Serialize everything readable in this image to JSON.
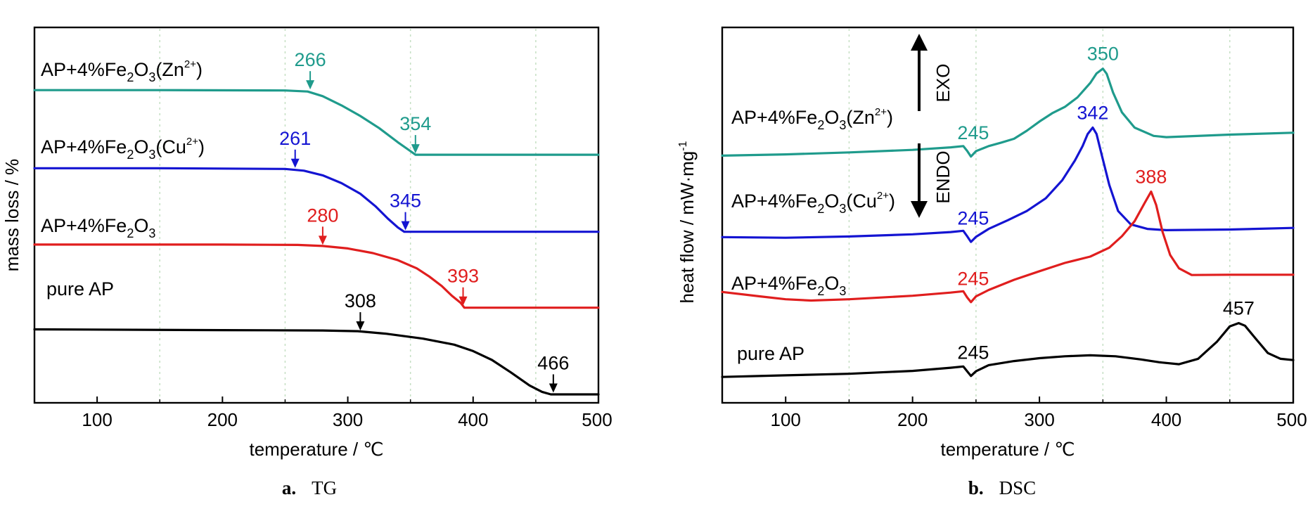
{
  "figure": {
    "panel_a_caption": {
      "letter": "a.",
      "text": "TG"
    },
    "panel_b_caption": {
      "letter": "b.",
      "text": "DSC"
    }
  },
  "colors": {
    "axis": "#000000",
    "grid": "#c5dfc3",
    "black": "#000000",
    "red": "#e01e1e",
    "blue": "#1414d2",
    "teal": "#1f9b8c"
  },
  "chart_data": [
    {
      "id": "tg",
      "type": "line",
      "title": "",
      "xlabel": "temperature / ℃",
      "ylabel": "mass loss / %",
      "xlim": [
        50,
        500
      ],
      "ylim": [
        0,
        100
      ],
      "xticks": [
        100,
        200,
        300,
        400,
        500
      ],
      "gridlines_x": [
        150,
        250,
        350,
        450
      ],
      "grid": "dashed vertical",
      "y_tick_labels": false,
      "series": [
        {
          "name_base": "AP+4%Fe",
          "name_sub1": "2",
          "name_mid": "O",
          "name_sub2": "3",
          "name_tail": "(Zn",
          "name_sup": "2+",
          "name_end": ")",
          "color": "teal",
          "x": [
            50,
            150,
            250,
            268,
            280,
            295,
            310,
            325,
            340,
            350,
            354,
            360,
            400,
            500
          ],
          "y": [
            86.5,
            86.5,
            86.4,
            86.1,
            84.8,
            82.2,
            79.2,
            75.8,
            71.8,
            69.3,
            68.3,
            68.3,
            68.3,
            68.3
          ],
          "annotations": [
            {
              "x": 270,
              "label": "266",
              "y_point": 86.3
            },
            {
              "x": 354,
              "label": "354",
              "y_point": 68.3
            }
          ]
        },
        {
          "name_base": "AP+4%Fe",
          "name_sub1": "2",
          "name_mid": "O",
          "name_sub2": "3",
          "name_tail": "(Cu",
          "name_sup": "2+",
          "name_end": ")",
          "color": "blue",
          "x": [
            50,
            150,
            250,
            265,
            280,
            295,
            310,
            322,
            332,
            340,
            345,
            350,
            400,
            500
          ],
          "y": [
            64.5,
            64.5,
            64.3,
            63.8,
            62.5,
            60.3,
            57.3,
            53.8,
            50.3,
            47.8,
            46.6,
            46.6,
            46.6,
            46.6
          ],
          "annotations": [
            {
              "x": 258,
              "label": "261",
              "y_point": 64.2
            },
            {
              "x": 346,
              "label": "345",
              "y_point": 46.6
            }
          ]
        },
        {
          "name_base": "AP+4%Fe",
          "name_sub1": "2",
          "name_mid": "O",
          "name_sub2": "3",
          "name_tail": "",
          "name_sup": "",
          "name_end": "",
          "color": "red",
          "x": [
            50,
            200,
            260,
            280,
            300,
            320,
            340,
            355,
            365,
            375,
            383,
            390,
            393,
            400,
            500
          ],
          "y": [
            43,
            43,
            42.9,
            42.6,
            41.9,
            40.6,
            38.6,
            36.3,
            34,
            31.3,
            28.6,
            26.6,
            25.2,
            25.2,
            25.2
          ],
          "annotations": [
            {
              "x": 280,
              "label": "280",
              "y_point": 42.5
            },
            {
              "x": 392,
              "label": "393",
              "y_point": 25.4
            }
          ]
        },
        {
          "name": "pure AP",
          "color": "black",
          "x": [
            50,
            200,
            280,
            308,
            330,
            360,
            385,
            400,
            415,
            430,
            445,
            455,
            462,
            466,
            500
          ],
          "y": [
            19.1,
            18.9,
            18.8,
            18.6,
            17.9,
            16.5,
            14.8,
            13,
            10.5,
            7,
            3.3,
            1.5,
            0.8,
            0.8,
            0.8
          ],
          "annotations": [
            {
              "x": 310,
              "label": "308",
              "y_point": 18.4
            },
            {
              "x": 464,
              "label": "466",
              "y_point": 0.9
            }
          ]
        }
      ]
    },
    {
      "id": "dsc",
      "type": "line",
      "title": "",
      "xlabel": "temperature / ℃",
      "ylabel_main": "heat flow / mW·mg",
      "ylabel_sup": "-1",
      "xlim": [
        50,
        500
      ],
      "ylim": [
        0,
        100
      ],
      "xticks": [
        100,
        200,
        300,
        400,
        500
      ],
      "gridlines_x": [
        150,
        250,
        350,
        450
      ],
      "grid": "dashed vertical",
      "y_tick_labels": false,
      "exo_label": "EXO",
      "endo_label": "ENDO",
      "series": [
        {
          "name_base": "AP+4%Fe",
          "name_sub1": "2",
          "name_mid": "O",
          "name_sub2": "3",
          "name_tail": "(Zn",
          "name_sup": "2+",
          "name_end": ")",
          "color": "teal",
          "x": [
            50,
            100,
            150,
            200,
            230,
            240,
            243,
            246,
            250,
            260,
            270,
            280,
            290,
            300,
            310,
            320,
            330,
            340,
            345,
            350,
            353,
            358,
            365,
            375,
            390,
            400,
            450,
            500
          ],
          "y": [
            71,
            71.4,
            72,
            72.8,
            73.6,
            74,
            72.5,
            70.7,
            72.4,
            74,
            75.1,
            76.3,
            78.8,
            81.7,
            84.3,
            86.3,
            89.3,
            93.8,
            96.8,
            98.3,
            96.7,
            90.8,
            84.6,
            79.8,
            77.2,
            76.8,
            77.6,
            78.2
          ],
          "annotations": [
            {
              "x": 245,
              "label": "245"
            },
            {
              "x": 350,
              "label": "350"
            }
          ]
        },
        {
          "name_base": "AP+4%Fe",
          "name_sub1": "2",
          "name_mid": "O",
          "name_sub2": "3",
          "name_tail": "(Cu",
          "name_sup": "2+",
          "name_end": ")",
          "color": "blue",
          "x": [
            50,
            100,
            150,
            200,
            230,
            240,
            243,
            246,
            250,
            260,
            275,
            290,
            305,
            318,
            328,
            334,
            338,
            342,
            345,
            349,
            355,
            362,
            372,
            385,
            400,
            450,
            500
          ],
          "y": [
            45.4,
            45.2,
            45.6,
            46.3,
            47,
            47.4,
            45.7,
            43.9,
            45.5,
            48,
            50.7,
            53.6,
            57.6,
            63.3,
            69.5,
            74,
            77.8,
            79.8,
            77.8,
            71.4,
            61.8,
            53.6,
            49.4,
            48,
            47.6,
            47.8,
            48.3
          ],
          "annotations": [
            {
              "x": 245,
              "label": "245"
            },
            {
              "x": 342,
              "label": "342"
            }
          ]
        },
        {
          "name_base": "AP+4%Fe",
          "name_sub1": "2",
          "name_mid": "O",
          "name_sub2": "3",
          "name_tail": "",
          "name_sup": "",
          "name_end": "",
          "color": "red",
          "x": [
            50,
            80,
            100,
            120,
            150,
            200,
            230,
            240,
            243,
            246,
            250,
            260,
            280,
            300,
            320,
            340,
            355,
            365,
            375,
            383,
            388,
            392,
            397,
            403,
            410,
            420,
            450,
            500
          ],
          "y": [
            28.2,
            26.8,
            25.9,
            25.5,
            25.9,
            27,
            28,
            28.4,
            26.5,
            25,
            26.8,
            28.8,
            32,
            34.7,
            37.3,
            39.3,
            42.1,
            45.7,
            50.4,
            56.2,
            59.7,
            55.5,
            47.1,
            39.8,
            35.6,
            33.5,
            33.6,
            33.6
          ],
          "annotations": [
            {
              "x": 245,
              "label": "245"
            },
            {
              "x": 388,
              "label": "388"
            }
          ]
        },
        {
          "name": "pure AP",
          "color": "black",
          "x": [
            50,
            100,
            150,
            200,
            230,
            240,
            243,
            246,
            250,
            260,
            280,
            300,
            320,
            340,
            360,
            380,
            395,
            410,
            425,
            440,
            450,
            457,
            462,
            470,
            480,
            490,
            500
          ],
          "y": [
            1.5,
            2,
            2.5,
            3.4,
            4.4,
            4.8,
            3.3,
            1.8,
            3.3,
            5.2,
            6.5,
            7.4,
            8,
            8.3,
            8,
            7,
            6.1,
            5.5,
            7.2,
            12.6,
            17.4,
            18.4,
            17.6,
            13.7,
            9,
            7.2,
            6.8
          ],
          "annotations": [
            {
              "x": 245,
              "label": "245"
            },
            {
              "x": 457,
              "label": "457"
            }
          ]
        }
      ]
    }
  ]
}
